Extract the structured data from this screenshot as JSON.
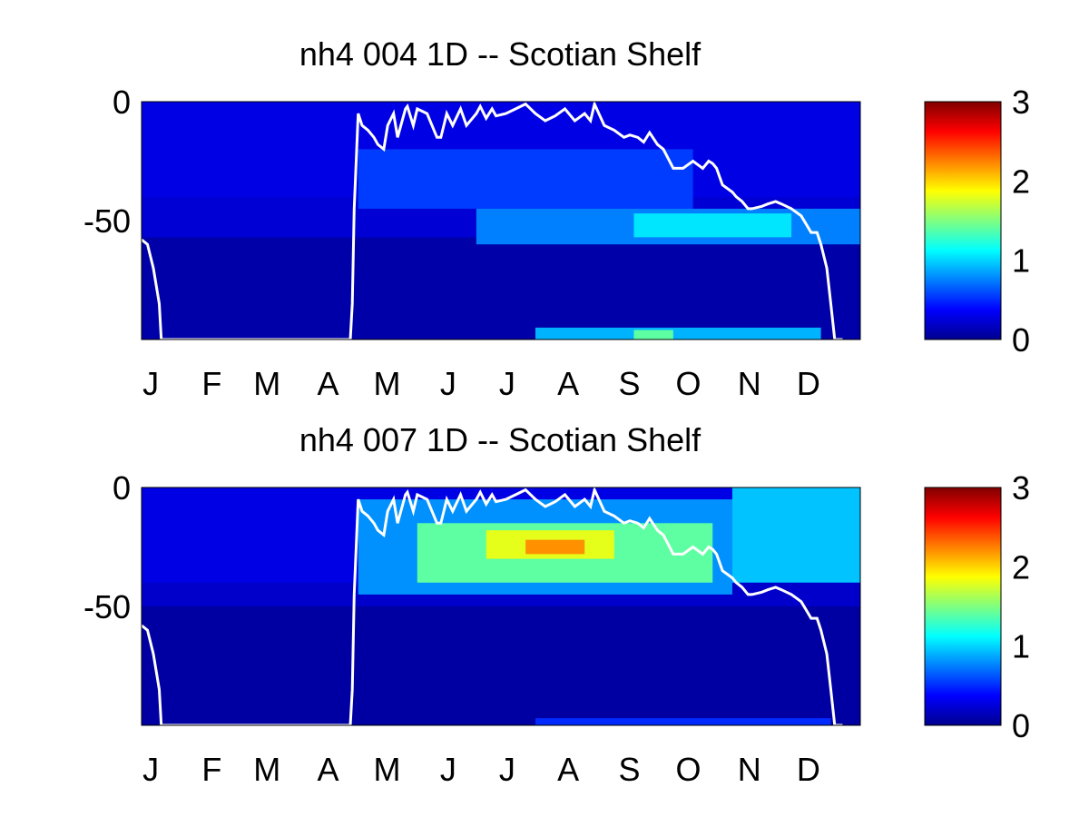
{
  "colormap": "jet",
  "line_color": "#ffffff",
  "chart_data": [
    {
      "type": "heatmap",
      "title": "nh4  004 1D   -- Scotian Shelf",
      "xlabel": "",
      "ylabel": "",
      "xlim": [
        0,
        365
      ],
      "ylim": [
        -100,
        0
      ],
      "xticks": [
        {
          "label": "J",
          "day": 1
        },
        {
          "label": "F",
          "day": 32
        },
        {
          "label": "M",
          "day": 60
        },
        {
          "label": "A",
          "day": 91
        },
        {
          "label": "M",
          "day": 121
        },
        {
          "label": "J",
          "day": 152
        },
        {
          "label": "J",
          "day": 182
        },
        {
          "label": "A",
          "day": 213
        },
        {
          "label": "S",
          "day": 244
        },
        {
          "label": "O",
          "day": 274
        },
        {
          "label": "N",
          "day": 305
        },
        {
          "label": "D",
          "day": 335
        }
      ],
      "yticks": [
        0,
        -50
      ],
      "colorbar": {
        "range": [
          0,
          3
        ],
        "ticks": [
          0,
          1,
          2,
          3
        ]
      },
      "field_description": "NH4 concentration vs day of year and depth (values approximated)",
      "field_features": [
        {
          "day": [
            0,
            365
          ],
          "depth": [
            0,
            -40
          ],
          "value": 0.3
        },
        {
          "day": [
            0,
            365
          ],
          "depth": [
            -40,
            -57
          ],
          "value": 0.25
        },
        {
          "day": [
            0,
            365
          ],
          "depth": [
            -57,
            -100
          ],
          "value": 0.12
        },
        {
          "day": [
            110,
            280
          ],
          "depth": [
            -20,
            -45
          ],
          "value": 0.55
        },
        {
          "day": [
            170,
            365
          ],
          "depth": [
            -45,
            -60
          ],
          "value": 0.75
        },
        {
          "day": [
            250,
            330
          ],
          "depth": [
            -47,
            -57
          ],
          "value": 1.05
        },
        {
          "day": [
            200,
            345
          ],
          "depth": [
            -95,
            -100
          ],
          "value": 0.9
        },
        {
          "day": [
            250,
            270
          ],
          "depth": [
            -96,
            -100
          ],
          "value": 1.4
        }
      ],
      "overlay_line": {
        "name": "",
        "days": [
          0,
          3,
          6,
          9,
          10,
          106,
          107,
          108,
          109,
          110,
          112,
          115,
          118,
          120,
          123,
          125,
          128,
          130,
          134,
          135,
          138,
          140,
          145,
          150,
          152,
          155,
          158,
          162,
          165,
          170,
          172,
          175,
          178,
          180,
          185,
          190,
          195,
          200,
          205,
          210,
          215,
          220,
          225,
          228,
          230,
          235,
          240,
          245,
          248,
          252,
          255,
          258,
          262,
          265,
          270,
          275,
          280,
          285,
          288,
          290,
          292,
          295,
          300,
          302,
          305,
          308,
          310,
          315,
          318,
          322,
          325,
          330,
          335,
          340,
          343,
          345,
          348,
          350,
          352,
          354,
          356
        ],
        "depths": [
          -58,
          -60,
          -70,
          -85,
          -100,
          -100,
          -85,
          -45,
          -25,
          -5,
          -10,
          -12,
          -15,
          -18,
          -20,
          -10,
          -5,
          -15,
          -3,
          -2,
          -10,
          -3,
          -5,
          -15,
          -15,
          -5,
          -10,
          -3,
          -10,
          -5,
          -2,
          -7,
          -3,
          -6,
          -5,
          -3,
          -1,
          -5,
          -8,
          -6,
          -3,
          -8,
          -5,
          -8,
          -1,
          -10,
          -12,
          -15,
          -14,
          -15,
          -17,
          -13,
          -18,
          -20,
          -28,
          -28,
          -25,
          -28,
          -25,
          -26,
          -28,
          -35,
          -38,
          -40,
          -42,
          -45,
          -45,
          -44,
          -43,
          -42,
          -43,
          -45,
          -48,
          -55,
          -55,
          -60,
          -70,
          -85,
          -100,
          -100,
          -100
        ]
      }
    },
    {
      "type": "heatmap",
      "title": "nh4  007 1D   -- Scotian Shelf",
      "xlabel": "",
      "ylabel": "",
      "xlim": [
        0,
        365
      ],
      "ylim": [
        -100,
        0
      ],
      "xticks": [
        {
          "label": "J",
          "day": 1
        },
        {
          "label": "F",
          "day": 32
        },
        {
          "label": "M",
          "day": 60
        },
        {
          "label": "A",
          "day": 91
        },
        {
          "label": "M",
          "day": 121
        },
        {
          "label": "J",
          "day": 152
        },
        {
          "label": "J",
          "day": 182
        },
        {
          "label": "A",
          "day": 213
        },
        {
          "label": "S",
          "day": 244
        },
        {
          "label": "O",
          "day": 274
        },
        {
          "label": "N",
          "day": 305
        },
        {
          "label": "D",
          "day": 335
        }
      ],
      "yticks": [
        0,
        -50
      ],
      "colorbar": {
        "range": [
          0,
          3
        ],
        "ticks": [
          0,
          1,
          2,
          3
        ]
      },
      "field_description": "NH4 concentration vs day of year and depth (values approximated)",
      "field_features": [
        {
          "day": [
            0,
            365
          ],
          "depth": [
            0,
            -40
          ],
          "value": 0.3
        },
        {
          "day": [
            0,
            365
          ],
          "depth": [
            -40,
            -50
          ],
          "value": 0.22
        },
        {
          "day": [
            0,
            365
          ],
          "depth": [
            -50,
            -100
          ],
          "value": 0.1
        },
        {
          "day": [
            110,
            300
          ],
          "depth": [
            -5,
            -45
          ],
          "value": 0.8
        },
        {
          "day": [
            300,
            365
          ],
          "depth": [
            0,
            -40
          ],
          "value": 0.95
        },
        {
          "day": [
            140,
            290
          ],
          "depth": [
            -15,
            -40
          ],
          "value": 1.4
        },
        {
          "day": [
            175,
            240
          ],
          "depth": [
            -18,
            -30
          ],
          "value": 1.8
        },
        {
          "day": [
            195,
            225
          ],
          "depth": [
            -22,
            -28
          ],
          "value": 2.2
        },
        {
          "day": [
            200,
            350
          ],
          "depth": [
            -97,
            -100
          ],
          "value": 0.5
        }
      ],
      "overlay_line": {
        "name": "",
        "days": [
          0,
          3,
          6,
          9,
          10,
          106,
          107,
          108,
          109,
          110,
          112,
          115,
          118,
          120,
          123,
          125,
          128,
          130,
          134,
          135,
          138,
          140,
          145,
          150,
          152,
          155,
          158,
          162,
          165,
          170,
          172,
          175,
          178,
          180,
          185,
          190,
          195,
          200,
          205,
          210,
          215,
          220,
          225,
          228,
          230,
          235,
          240,
          245,
          248,
          252,
          255,
          258,
          262,
          265,
          270,
          275,
          280,
          285,
          288,
          290,
          292,
          295,
          300,
          302,
          305,
          308,
          310,
          315,
          318,
          322,
          325,
          330,
          335,
          340,
          343,
          345,
          348,
          350,
          352,
          354,
          356
        ],
        "depths": [
          -58,
          -60,
          -70,
          -85,
          -100,
          -100,
          -85,
          -45,
          -25,
          -5,
          -10,
          -12,
          -15,
          -18,
          -20,
          -10,
          -5,
          -15,
          -3,
          -2,
          -10,
          -3,
          -5,
          -15,
          -15,
          -5,
          -10,
          -3,
          -10,
          -5,
          -2,
          -7,
          -3,
          -6,
          -5,
          -3,
          -1,
          -5,
          -8,
          -6,
          -3,
          -8,
          -5,
          -8,
          -1,
          -10,
          -12,
          -15,
          -14,
          -15,
          -17,
          -13,
          -18,
          -20,
          -28,
          -28,
          -25,
          -28,
          -25,
          -26,
          -28,
          -35,
          -38,
          -40,
          -42,
          -45,
          -45,
          -44,
          -43,
          -42,
          -43,
          -45,
          -48,
          -55,
          -55,
          -60,
          -70,
          -85,
          -100,
          -100,
          -100
        ]
      }
    }
  ]
}
